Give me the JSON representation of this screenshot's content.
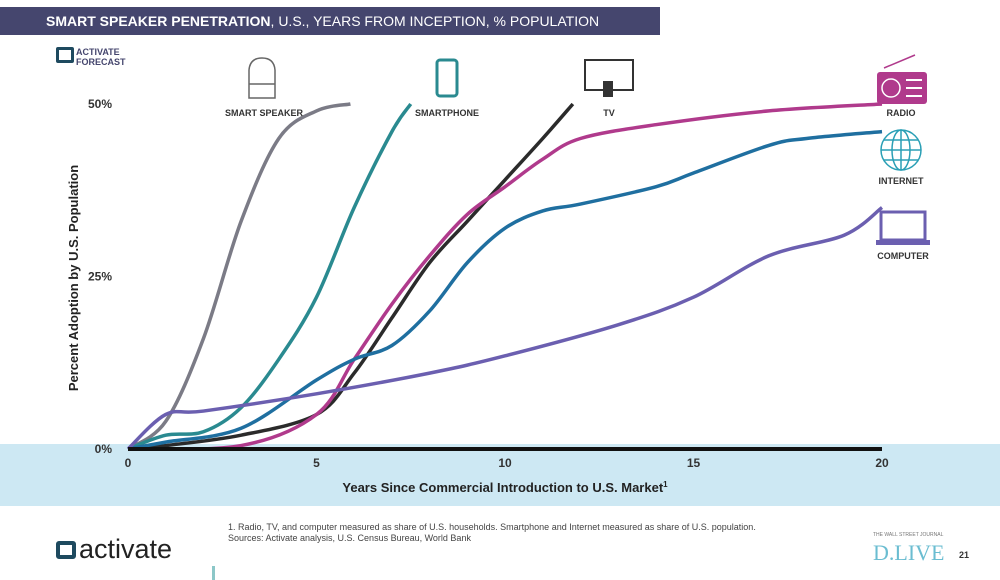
{
  "header": {
    "title_bold": "SMART SPEAKER PENETRATION",
    "title_rest": ", U.S., YEARS FROM INCEPTION, % POPULATION"
  },
  "forecast_label": [
    "ACTIVATE",
    "FORECAST"
  ],
  "chart_data": {
    "type": "line",
    "title": "SMART SPEAKER PENETRATION, U.S., YEARS FROM INCEPTION, % POPULATION",
    "xlabel": "Years Since Commercial Introduction to U.S. Market",
    "xlabel_sup": "1",
    "ylabel": "Percent Adoption by U.S. Population",
    "xlim": [
      0,
      20
    ],
    "ylim": [
      0,
      50
    ],
    "xticks": [
      "0",
      "5",
      "10",
      "15",
      "20"
    ],
    "xtick_values": [
      0,
      5,
      10,
      15,
      20
    ],
    "yticks": [
      "0%",
      "25%",
      "50%"
    ],
    "ytick_values": [
      0,
      25,
      50
    ],
    "grid": false,
    "series": [
      {
        "name": "SMART SPEAKER",
        "color": "#7b7b86",
        "x": [
          0,
          1,
          2,
          3,
          4,
          5,
          5.9
        ],
        "y": [
          0,
          4,
          16,
          33,
          45,
          49,
          50
        ]
      },
      {
        "name": "SMARTPHONE",
        "color": "#2a8a90",
        "x": [
          0,
          1,
          2,
          3,
          4,
          5,
          6,
          7,
          7.5
        ],
        "y": [
          0,
          2,
          2.5,
          6,
          13,
          22,
          35,
          46,
          50
        ]
      },
      {
        "name": "TV",
        "color": "#2b2b2b",
        "x": [
          0,
          1,
          3,
          5,
          6,
          7,
          8,
          9,
          10,
          11,
          11.8
        ],
        "y": [
          0,
          0.5,
          2,
          5,
          11,
          19,
          27,
          33,
          39,
          45,
          50
        ]
      },
      {
        "name": "RADIO",
        "color": "#b03a8c",
        "x": [
          0,
          3,
          5,
          6,
          7,
          8,
          9,
          10,
          11,
          12,
          14,
          17,
          20
        ],
        "y": [
          0,
          0.5,
          5,
          13,
          21,
          28,
          34,
          38,
          42,
          45,
          47,
          49,
          50
        ]
      },
      {
        "name": "INTERNET",
        "color": "#1f6fa0",
        "x": [
          0,
          1,
          3,
          5,
          6,
          7,
          8,
          9,
          10,
          11,
          12,
          14,
          15,
          17,
          18,
          20
        ],
        "y": [
          0,
          1,
          3,
          10,
          13,
          15,
          20,
          27,
          32,
          34.5,
          35.5,
          38,
          40,
          44,
          45,
          46
        ]
      },
      {
        "name": "COMPUTER",
        "color": "#6b5fb0",
        "x": [
          0,
          1,
          2,
          5,
          8,
          10,
          13,
          15,
          17,
          19,
          20
        ],
        "y": [
          0,
          5,
          5.5,
          8,
          11,
          13.5,
          18,
          22,
          28,
          31,
          35
        ]
      }
    ]
  },
  "footer": {
    "note_line1": "1. Radio, TV, and computer measured as share of U.S. households. Smartphone and Internet measured as share of U.S. population.",
    "note_line2": "Sources: Activate analysis, U.S. Census Bureau, World Bank",
    "logo": "activate",
    "dlive": "D.LIVE",
    "dlive_small": "THE WALL STREET JOURNAL",
    "page": "21"
  }
}
